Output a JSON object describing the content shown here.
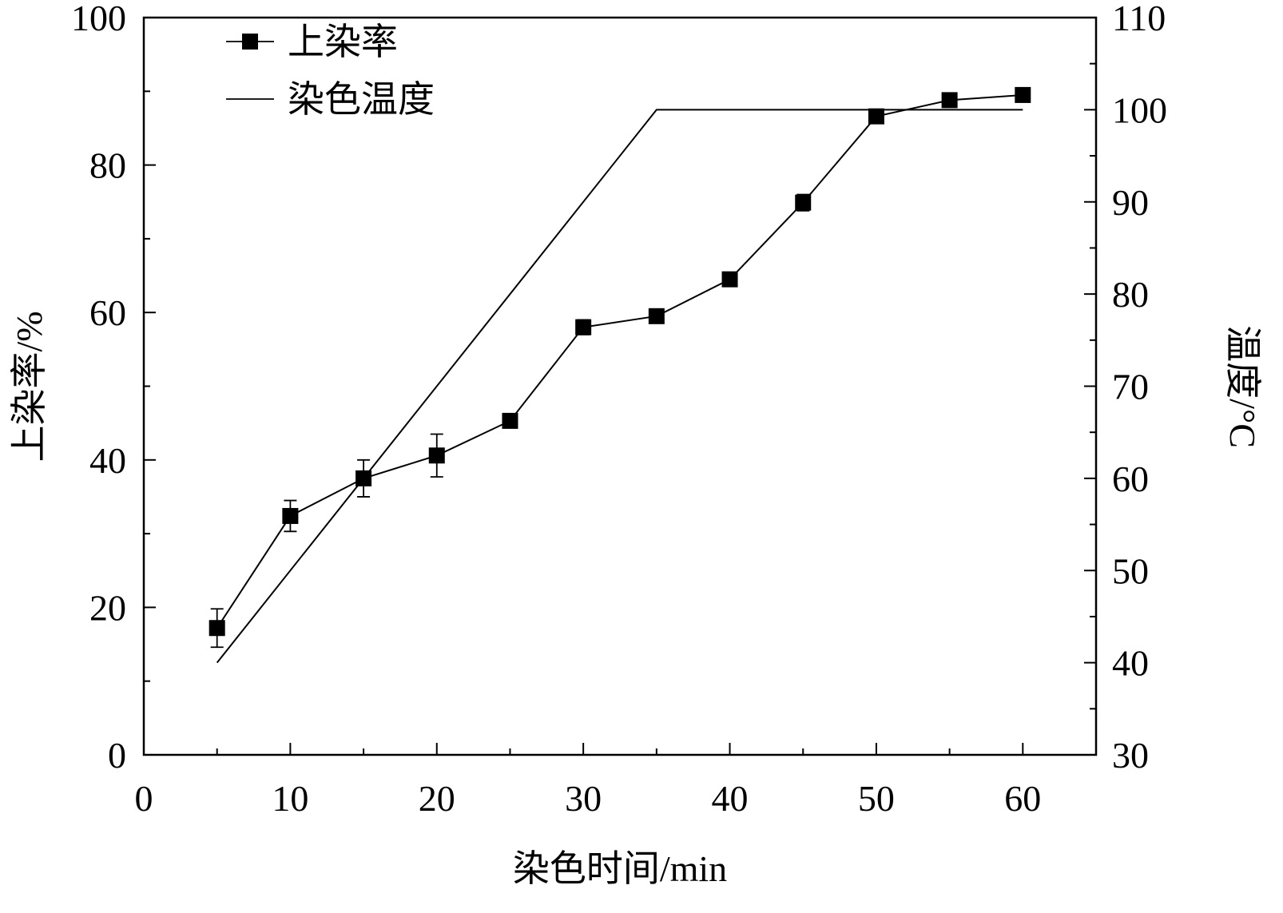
{
  "chart_data": {
    "type": "line",
    "title": "",
    "xlabel": "染色时间/min",
    "ylabel": "上染率/%",
    "y2label": "温度/°C",
    "xlim": [
      0,
      65
    ],
    "ylim": [
      0,
      100
    ],
    "y2lim": [
      30,
      110
    ],
    "xticks": [
      0,
      10,
      20,
      30,
      40,
      50,
      60
    ],
    "yticks": [
      0,
      20,
      40,
      60,
      80,
      100
    ],
    "y2ticks": [
      30,
      40,
      50,
      60,
      70,
      80,
      90,
      100,
      110
    ],
    "legend_position": "top-left",
    "grid": false,
    "series": [
      {
        "name": "上染率",
        "axis": "left",
        "marker": "square",
        "color": "#000000",
        "x": [
          5,
          10,
          15,
          20,
          25,
          30,
          35,
          40,
          45,
          50,
          55,
          60
        ],
        "values": [
          17.2,
          32.4,
          37.5,
          40.6,
          45.3,
          58.0,
          59.5,
          64.5,
          74.9,
          86.6,
          88.8,
          89.5
        ],
        "error": [
          2.6,
          2.1,
          2.5,
          2.9,
          0.6,
          1.0,
          0.5,
          0.5,
          1.1,
          0.7,
          0.5,
          0.5
        ]
      },
      {
        "name": "染色温度",
        "axis": "right",
        "marker": "none",
        "color": "#000000",
        "x": [
          5,
          35,
          60
        ],
        "values": [
          40,
          100,
          100
        ]
      }
    ]
  }
}
